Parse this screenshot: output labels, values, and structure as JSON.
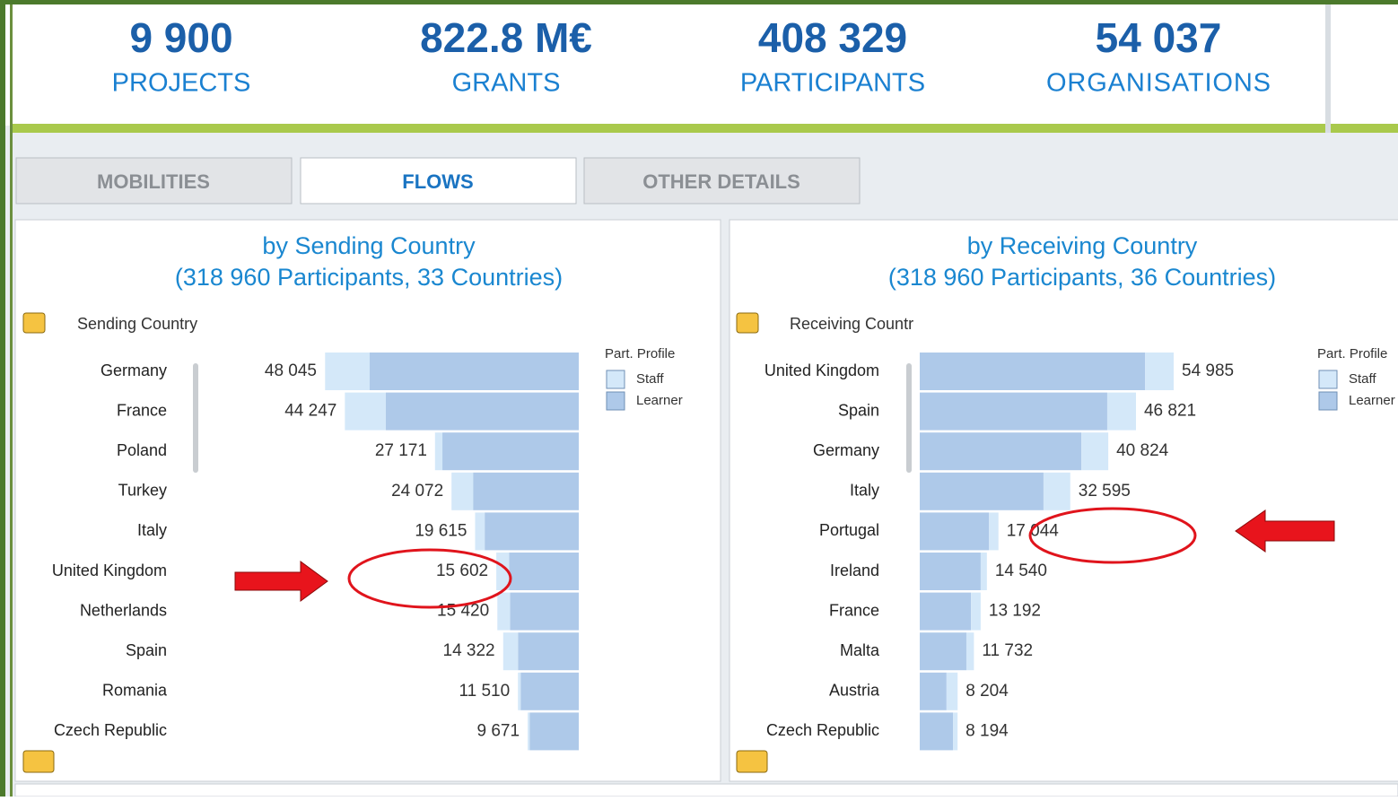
{
  "kpis": [
    {
      "value": "9 900",
      "label": "PROJECTS"
    },
    {
      "value": "822.8 M€",
      "label": "GRANTS"
    },
    {
      "value": "408 329",
      "label": "PARTICIPANTS"
    },
    {
      "value": "54 037",
      "label": "ORGANISATIONS"
    }
  ],
  "tabs": [
    "MOBILITIES",
    "FLOWS",
    "OTHER DETAILS"
  ],
  "chart_data": [
    {
      "type": "bar",
      "title": "by Sending Country",
      "subtitle": "(318 960 Participants, 33 Countries)",
      "dimension_label": "Sending Country",
      "legend_title": "Part. Profile",
      "categories": [
        "Germany",
        "France",
        "Poland",
        "Turkey",
        "Italy",
        "United Kingdom",
        "Netherlands",
        "Spain",
        "Romania",
        "Czech Republic"
      ],
      "series": [
        {
          "name": "Staff",
          "color": "#d4e8f9",
          "values": [
            8400,
            7750,
            1400,
            4072,
            1815,
            2400,
            2400,
            2800,
            500,
            370
          ]
        },
        {
          "name": "Learner",
          "color": "#aec9e9",
          "values": [
            39600,
            36500,
            25800,
            20000,
            17800,
            13200,
            13000,
            11500,
            11000,
            9300
          ]
        }
      ],
      "totals": [
        48045,
        44247,
        27171,
        24072,
        19615,
        15602,
        15420,
        14322,
        11510,
        9671
      ],
      "total_labels": [
        "48 045",
        "44 247",
        "27 171",
        "24 072",
        "19 615",
        "15 602",
        "15 420",
        "14 322",
        "11 510",
        "9 671"
      ]
    },
    {
      "type": "bar",
      "title": "by Receiving Country",
      "subtitle": "(318 960 Participants, 36 Countries)",
      "dimension_label": "Receiving Countr",
      "legend_title": "Part. Profile",
      "categories": [
        "United Kingdom",
        "Spain",
        "Germany",
        "Italy",
        "Portugal",
        "Ireland",
        "France",
        "Malta",
        "Austria",
        "Czech Republic"
      ],
      "series": [
        {
          "name": "Staff",
          "color": "#d4e8f9",
          "values": [
            6185,
            6221,
            5824,
            5795,
            2044,
            1340,
            2092,
            1632,
            2404,
            994
          ]
        },
        {
          "name": "Learner",
          "color": "#aec9e9",
          "values": [
            48800,
            40600,
            35000,
            26800,
            15000,
            13200,
            11100,
            10100,
            5800,
            7200
          ]
        }
      ],
      "totals": [
        54985,
        46821,
        40824,
        32595,
        17044,
        14540,
        13192,
        11732,
        8204,
        8194
      ],
      "total_labels": [
        "54 985",
        "46 821",
        "40 824",
        "32 595",
        "17 044",
        "14 540",
        "13 192",
        "11 732",
        "8 204",
        "8 194"
      ]
    }
  ]
}
